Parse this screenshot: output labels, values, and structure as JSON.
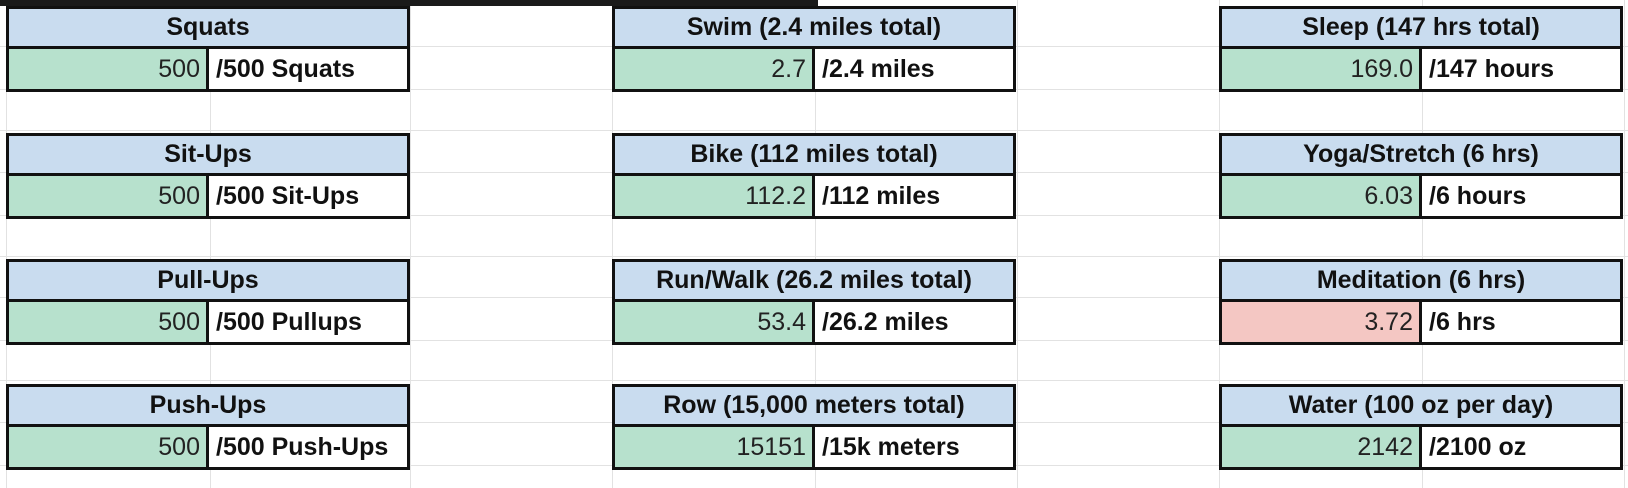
{
  "columns": [
    {
      "cards": [
        {
          "title": "Squats",
          "value": "500",
          "goal": "/500 Squats",
          "status": "met"
        },
        {
          "title": "Sit-Ups",
          "value": "500",
          "goal": "/500 Sit-Ups",
          "status": "met"
        },
        {
          "title": "Pull-Ups",
          "value": "500",
          "goal": "/500 Pullups",
          "status": "met"
        },
        {
          "title": "Push-Ups",
          "value": "500",
          "goal": "/500 Push-Ups",
          "status": "met"
        }
      ]
    },
    {
      "cards": [
        {
          "title": "Swim (2.4 miles total)",
          "value": "2.7",
          "goal": "/2.4 miles",
          "status": "met"
        },
        {
          "title": "Bike (112 miles total)",
          "value": "112.2",
          "goal": "/112 miles",
          "status": "met"
        },
        {
          "title": "Run/Walk (26.2 miles total)",
          "value": "53.4",
          "goal": "/26.2 miles",
          "status": "met"
        },
        {
          "title": "Row (15,000 meters total)",
          "value": "15151",
          "goal": "/15k meters",
          "status": "met"
        }
      ]
    },
    {
      "cards": [
        {
          "title": "Sleep (147 hrs total)",
          "value": "169.0",
          "goal": "/147 hours",
          "status": "met"
        },
        {
          "title": "Yoga/Stretch (6 hrs)",
          "value": "6.03",
          "goal": "/6 hours",
          "status": "met"
        },
        {
          "title": "Meditation (6 hrs)",
          "value": "3.72",
          "goal": "/6 hrs",
          "status": "unmet"
        },
        {
          "title": "Water (100 oz per day)",
          "value": "2142",
          "goal": "/2100 oz",
          "status": "met"
        }
      ]
    }
  ],
  "colors": {
    "header_fill": "#c9dcef",
    "met_fill": "#b7e1cd",
    "unmet_fill": "#f4c7c3"
  }
}
